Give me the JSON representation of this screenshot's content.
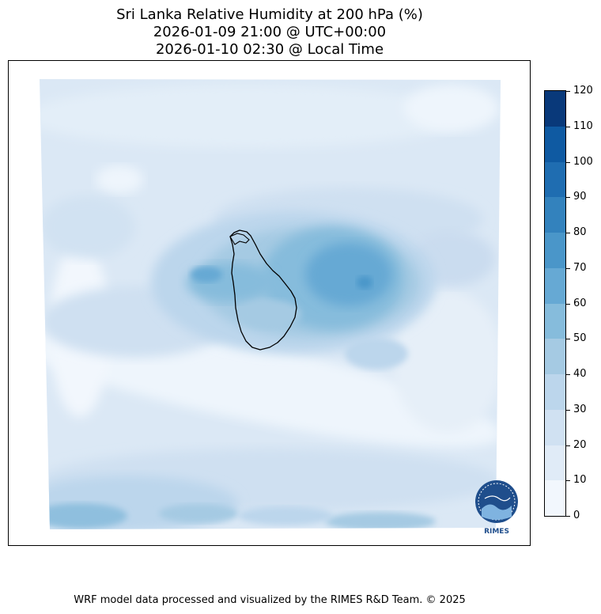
{
  "title": {
    "line1": "Sri Lanka Relative Humidity at 200 hPa (%)",
    "line2": "2026-01-09 21:00 @ UTC+00:00",
    "line3": "2026-01-10 02:30 @ Local Time"
  },
  "colorbar": {
    "levels": [
      0,
      10,
      20,
      30,
      40,
      50,
      60,
      70,
      80,
      90,
      100,
      110,
      120
    ],
    "tick_labels": [
      "0",
      "10",
      "20",
      "30",
      "40",
      "50",
      "60",
      "70",
      "80",
      "90",
      "100",
      "110",
      "120"
    ],
    "colors": [
      "#f2f7fd",
      "#e0ebf7",
      "#d0e1f2",
      "#bcd6ec",
      "#a5cae3",
      "#86bcdc",
      "#66a9d4",
      "#4a96c9",
      "#3382bd",
      "#1f6db1",
      "#0f5aa2",
      "#09397a"
    ]
  },
  "logo": {
    "text": "RIMES"
  },
  "footer": {
    "text": "WRF model data processed and visualized by the RIMES R&D Team. © 2025"
  }
}
